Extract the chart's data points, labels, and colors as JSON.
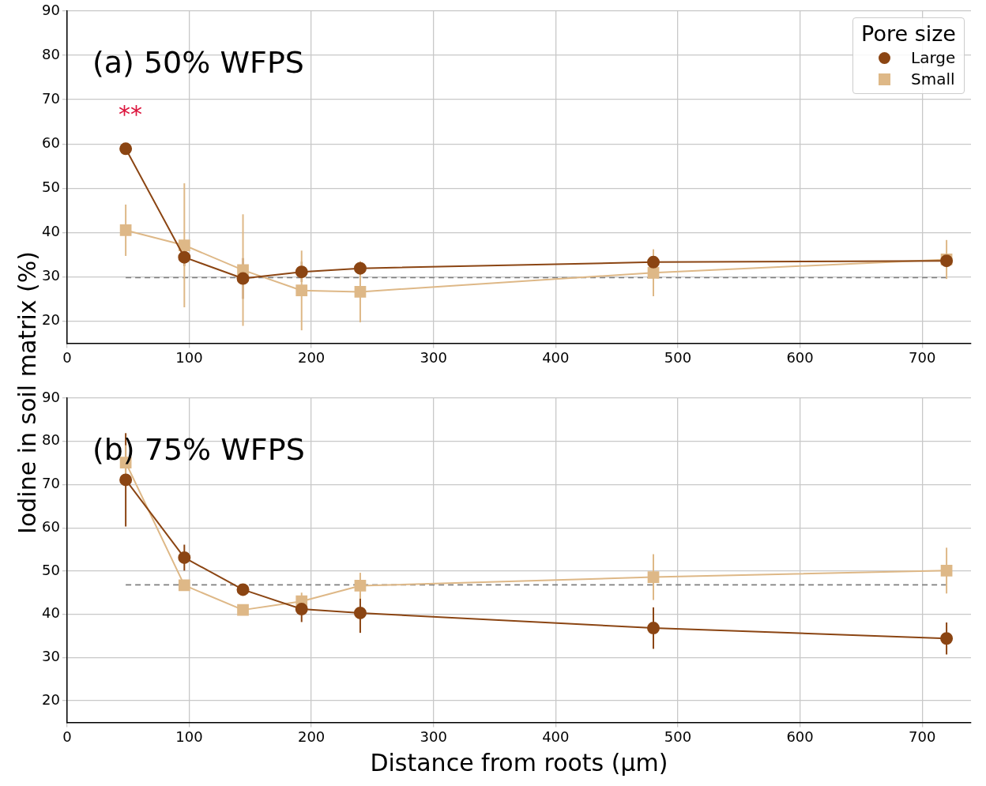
{
  "chart_data": [
    {
      "type": "line",
      "ylabel": "Iodine in soil matrix (%)",
      "legend_title": "Pore size",
      "legend": "top right",
      "grid": true,
      "xlim": [
        0,
        740
      ],
      "xticks": [
        0,
        100,
        200,
        300,
        400,
        500,
        600,
        700
      ],
      "ylim": [
        15,
        90
      ],
      "yticks": [
        20,
        30,
        40,
        50,
        60,
        70,
        80,
        90
      ],
      "x": [
        48,
        96,
        144,
        192,
        240,
        480,
        720
      ],
      "series": [
        {
          "name": "Large",
          "color": "#8b4513",
          "marker": "circle",
          "values": [
            58.9,
            34.4,
            29.6,
            31.1,
            31.9,
            33.3,
            33.6
          ],
          "errors": [
            1,
            2,
            4.6,
            2.3,
            1.5,
            1,
            1
          ]
        },
        {
          "name": "Small",
          "color": "#deb887",
          "marker": "square",
          "values": [
            40.5,
            37.1,
            31.5,
            26.9,
            26.6,
            30.9,
            33.9
          ],
          "errors": [
            5.8,
            14,
            12.6,
            9,
            6.9,
            5.3,
            4.4
          ]
        }
      ],
      "ref_lines": [
        {
          "axis": "y",
          "value": 29.8,
          "color": "#808080",
          "line_style": "dashed"
        }
      ],
      "annotations": [
        "(a) 50% WFPS",
        "**"
      ]
    },
    {
      "type": "line",
      "xlabel": "Distance from roots (µm)",
      "grid": true,
      "xlim": [
        0,
        740
      ],
      "xticks": [
        0,
        100,
        200,
        300,
        400,
        500,
        600,
        700
      ],
      "ylim": [
        15,
        90
      ],
      "yticks": [
        20,
        30,
        40,
        50,
        60,
        70,
        80,
        90
      ],
      "x": [
        48,
        96,
        144,
        192,
        240,
        480,
        720
      ],
      "series": [
        {
          "color": "#8b4513",
          "marker": "circle",
          "values": [
            71.1,
            53.1,
            45.7,
            41.2,
            40.3,
            36.8,
            34.4
          ],
          "errors": [
            10.8,
            3,
            1,
            3,
            4.6,
            4.8,
            3.7
          ]
        },
        {
          "color": "#deb887",
          "marker": "square",
          "values": [
            75.1,
            46.7,
            41.0,
            43.0,
            46.6,
            48.6,
            50.1
          ],
          "errors": [
            4,
            1,
            1,
            2,
            3,
            5.3,
            5.3
          ]
        }
      ],
      "ref_lines": [
        {
          "axis": "y",
          "value": 46.8,
          "color": "#808080",
          "line_style": "dashed"
        }
      ],
      "annotations": [
        "(b) 75% WFPS"
      ]
    }
  ]
}
